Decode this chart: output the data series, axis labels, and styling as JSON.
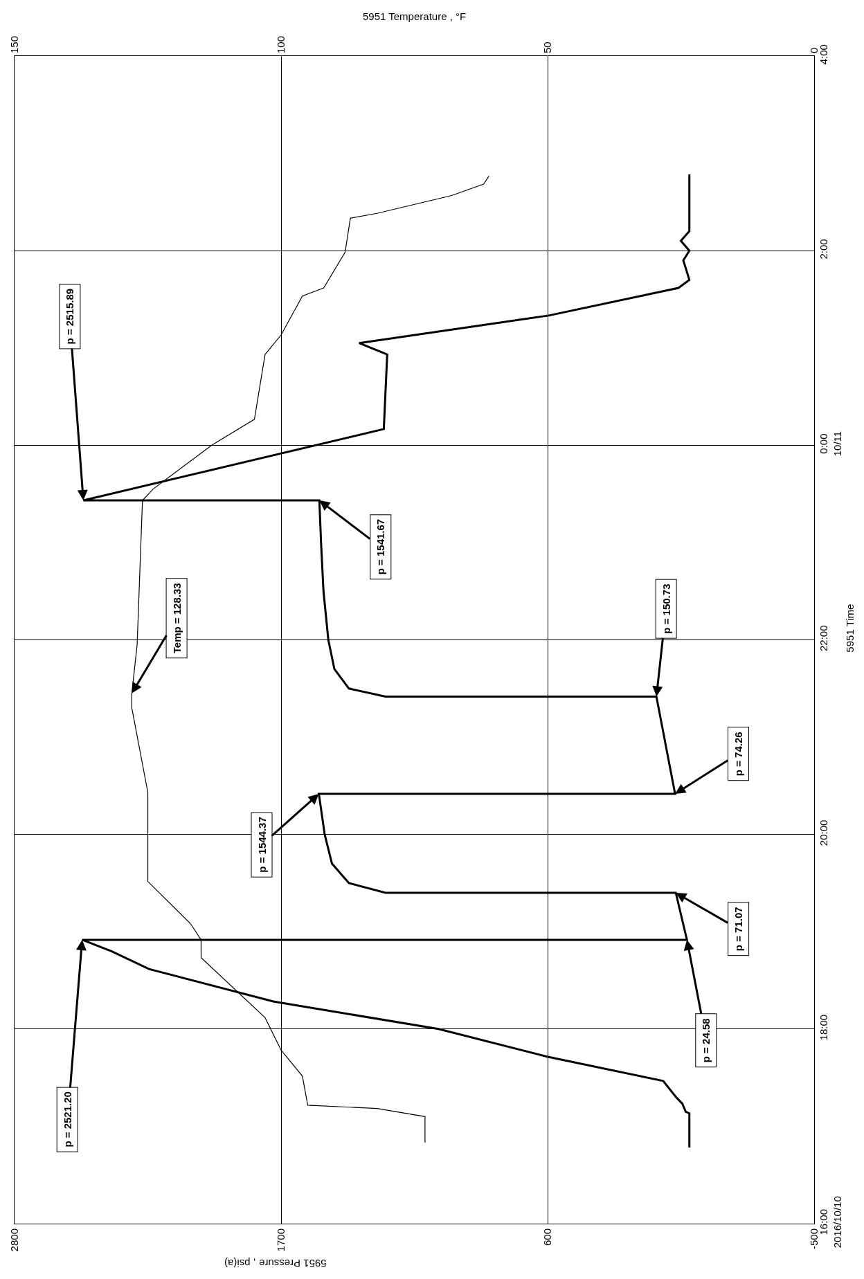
{
  "chart_data": {
    "type": "line",
    "orientation": "horizontal",
    "xlabel": "5951 Pressure , psi(a)",
    "x2label": "5951 Temperature , °F",
    "ylabel": "5951 Time",
    "xlim": [
      2800,
      -500
    ],
    "xticks": [
      2800,
      1700,
      600,
      -500
    ],
    "x2lim": [
      150,
      0
    ],
    "x2ticks": [
      150,
      100,
      50,
      0
    ],
    "ylim": [
      "2016-10-10T16:00",
      "2016-10-11T04:00"
    ],
    "yticks": [
      {
        "value": "2016-10-10T16:00",
        "label": "16:00\n2016/10/10"
      },
      {
        "value": "2016-10-10T18:00",
        "label": "18:00"
      },
      {
        "value": "2016-10-10T20:00",
        "label": "20:00"
      },
      {
        "value": "2016-10-10T22:00",
        "label": "22:00"
      },
      {
        "value": "2016-10-11T00:00",
        "label": "0:00\n10/11"
      },
      {
        "value": "2016-10-11T02:00",
        "label": "2:00"
      },
      {
        "value": "2016-10-11T04:00",
        "label": "4:00"
      }
    ],
    "grid": true,
    "marker": "none",
    "line_style": "solid",
    "series": [
      {
        "color": "#000000",
        "x": [
          "2016-10-10T16:47",
          "2016-10-10T17:08",
          "2016-10-10T17:09",
          "2016-10-10T17:14",
          "2016-10-10T17:18",
          "2016-10-10T17:28",
          "2016-10-10T17:43",
          "2016-10-10T18:00",
          "2016-10-10T18:17",
          "2016-10-10T18:37",
          "2016-10-10T18:48",
          "2016-10-10T18:55",
          "2016-10-10T18:55",
          "2016-10-10T19:24",
          "2016-10-10T19:24",
          "2016-10-10T19:30",
          "2016-10-10T19:42",
          "2016-10-10T20:00",
          "2016-10-10T20:25",
          "2016-10-10T20:25",
          "2016-10-10T21:25",
          "2016-10-10T21:25",
          "2016-10-10T21:30",
          "2016-10-10T21:42",
          "2016-10-10T22:00",
          "2016-10-10T22:30",
          "2016-10-10T23:00",
          "2016-10-10T23:26",
          "2016-10-10T23:26",
          "2016-10-11T00:10",
          "2016-10-11T00:56",
          "2016-10-11T01:03",
          "2016-10-11T01:20",
          "2016-10-11T01:37",
          "2016-10-11T01:42",
          "2016-10-11T01:54",
          "2016-10-11T02:00",
          "2016-10-11T02:06",
          "2016-10-11T02:12",
          "2016-10-11T02:47"
        ],
        "values": [
          15,
          15,
          30,
          44,
          70,
          123,
          602,
          1050,
          1732,
          2245,
          2400,
          2521,
          25,
          71,
          1269,
          1420,
          1490,
          1520,
          1544,
          74,
          151,
          1269,
          1420,
          1480,
          1505,
          1525,
          1535,
          1542,
          2516,
          1276,
          1262,
          1378,
          595,
          60,
          15,
          40,
          15,
          50,
          15,
          15
        ]
      },
      {
        "color": "#000000",
        "axis": "x2",
        "x": [
          "2016-10-10T16:50",
          "2016-10-10T17:06",
          "2016-10-10T17:11",
          "2016-10-10T17:13",
          "2016-10-10T17:31",
          "2016-10-10T17:47",
          "2016-10-10T18:07",
          "2016-10-10T18:44",
          "2016-10-10T18:55",
          "2016-10-10T19:05",
          "2016-10-10T19:31",
          "2016-10-10T19:59",
          "2016-10-10T20:26",
          "2016-10-10T21:18",
          "2016-10-10T21:27",
          "2016-10-10T21:57",
          "2016-10-10T23:26",
          "2016-10-10T23:33",
          "2016-10-11T00:00",
          "2016-10-11T00:16",
          "2016-10-11T00:56",
          "2016-10-11T01:08",
          "2016-10-11T01:32",
          "2016-10-11T01:37",
          "2016-10-11T01:59",
          "2016-10-11T02:20",
          "2016-10-11T02:23",
          "2016-10-11T02:34",
          "2016-10-11T02:41",
          "2016-10-11T02:46"
        ],
        "values": [
          73,
          73,
          82,
          95,
          96,
          100,
          103,
          115,
          115,
          117,
          125,
          125,
          125,
          128,
          128,
          127,
          126,
          124,
          113,
          105,
          103,
          100,
          96,
          92,
          88,
          87,
          82,
          68,
          62,
          61
        ]
      }
    ],
    "annotations": [
      {
        "text": "p = 2521.20",
        "x": 2521,
        "y": "2016-10-10T18:55"
      },
      {
        "text": "p = 24.58",
        "x": 25,
        "y": "2016-10-10T18:55"
      },
      {
        "text": "p = 71.07",
        "x": 71,
        "y": "2016-10-10T19:24"
      },
      {
        "text": "p = 1544.37",
        "x": 1544,
        "y": "2016-10-10T20:25"
      },
      {
        "text": "p = 74.26",
        "x": 74,
        "y": "2016-10-10T20:25"
      },
      {
        "text": "p = 150.73",
        "x": 151,
        "y": "2016-10-10T21:25"
      },
      {
        "text": "Temp = 128.33",
        "x": 2316,
        "y": "2016-10-10T21:27"
      },
      {
        "text": "p = 1541.67",
        "x": 1542,
        "y": "2016-10-10T23:26"
      },
      {
        "text": "p = 2515.89",
        "x": 2516,
        "y": "2016-10-10T23:26"
      }
    ]
  }
}
